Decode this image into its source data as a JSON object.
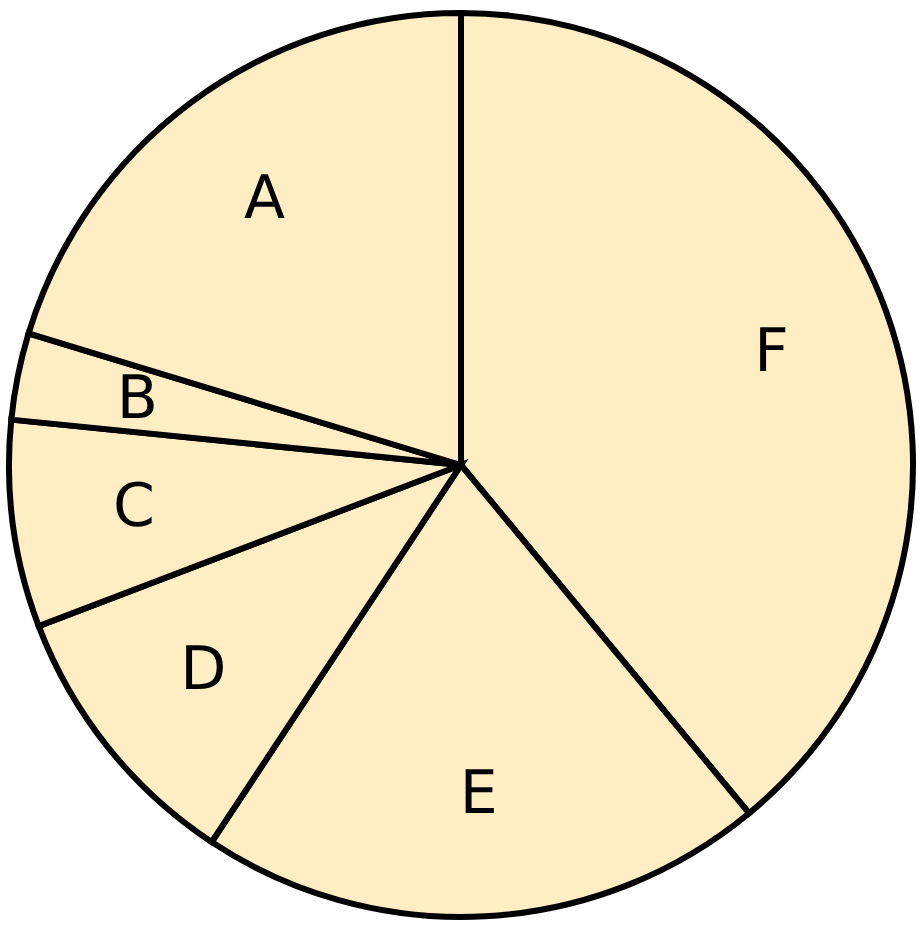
{
  "chart_data": {
    "type": "pie",
    "categories": [
      "F",
      "E",
      "D",
      "C",
      "B",
      "A"
    ],
    "values": [
      39,
      20.3,
      9.9,
      7.4,
      3.1,
      20.3
    ],
    "colors": [
      "#ffedc4",
      "#ffedc4",
      "#ffedc4",
      "#ffedc4",
      "#ffedc4",
      "#ffedc4"
    ],
    "legend": false
  }
}
